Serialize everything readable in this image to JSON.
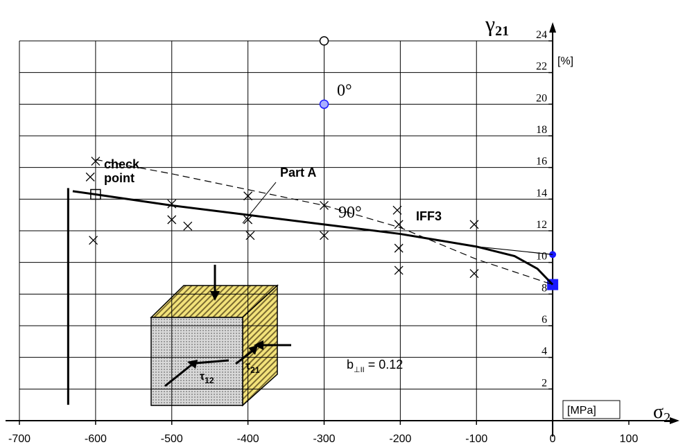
{
  "chart_data": {
    "type": "scatter",
    "x_label": "σ",
    "x_label_sub": "2",
    "x_unit": "[MPa]",
    "y_label": "γ",
    "y_label_sub": "21",
    "y_unit": "[%]",
    "xlim": [
      -700,
      100
    ],
    "ylim": [
      0,
      24
    ],
    "xticks": [
      -700,
      -600,
      -500,
      -400,
      -300,
      -200,
      -100,
      0,
      100
    ],
    "yticks": [
      2,
      4,
      6,
      8,
      10,
      12,
      14,
      16,
      18,
      20,
      22,
      24
    ],
    "grid": true,
    "series": [
      {
        "kind": "scatter",
        "marker": "x",
        "color": "#000000",
        "x": [
          -600,
          -607,
          -603,
          -500,
          -500,
          -479,
          -400,
          -400,
          -397,
          -300,
          -300,
          -204,
          -202,
          -202,
          -202,
          -103,
          -103
        ],
        "values": [
          16.4,
          15.4,
          11.4,
          13.7,
          12.7,
          12.3,
          14.2,
          12.7,
          11.7,
          13.6,
          11.7,
          13.3,
          12.4,
          10.9,
          9.5,
          12.4,
          9.3
        ]
      },
      {
        "kind": "scatter",
        "marker": "circle",
        "color": "#000000",
        "x": [
          -300
        ],
        "values": [
          24
        ]
      },
      {
        "kind": "scatter",
        "marker": "circle",
        "color": "#1a1aff",
        "x": [
          -300
        ],
        "values": [
          20
        ]
      },
      {
        "kind": "scatter",
        "marker": "square",
        "color": "#000000",
        "x": [
          -600
        ],
        "values": [
          14.3
        ]
      },
      {
        "kind": "scatter",
        "marker": "dot",
        "color": "#1a1aff",
        "x": [
          0
        ],
        "values": [
          10.5
        ]
      },
      {
        "kind": "scatter",
        "marker": "filled-square",
        "color": "#1a1aff",
        "x": [
          0
        ],
        "values": [
          8.6
        ]
      },
      {
        "kind": "line",
        "style": "solid",
        "width": 3,
        "color": "#000000",
        "x": [
          -630,
          -600,
          -500,
          -400,
          -300,
          -200,
          -100,
          -50,
          -20,
          0
        ],
        "values": [
          14.5,
          14.3,
          13.6,
          13.0,
          12.4,
          11.8,
          11.0,
          10.4,
          9.6,
          8.6
        ]
      },
      {
        "kind": "line",
        "style": "solid",
        "width": 1.2,
        "color": "#000000",
        "x": [
          -100,
          0
        ],
        "values": [
          11.0,
          10.5
        ]
      },
      {
        "kind": "line",
        "style": "dashed",
        "width": 1.2,
        "color": "#000000",
        "x": [
          -600,
          -500,
          -400,
          -300,
          -200,
          -100,
          0
        ],
        "values": [
          16.5,
          15.6,
          14.6,
          13.6,
          12.2,
          10.2,
          8.6
        ]
      },
      {
        "kind": "line",
        "style": "solid",
        "width": 3,
        "color": "#000000",
        "x": [
          -636,
          -636
        ],
        "values": [
          14.7,
          1.0
        ]
      }
    ],
    "annotations": [
      "0°",
      "90°",
      "IFF3",
      "Part A",
      "check",
      "point"
    ],
    "cube_labels": [
      "τ",
      "12",
      "τ",
      "21"
    ],
    "parameter": [
      "b",
      "⊥II",
      " = 0.12"
    ]
  }
}
